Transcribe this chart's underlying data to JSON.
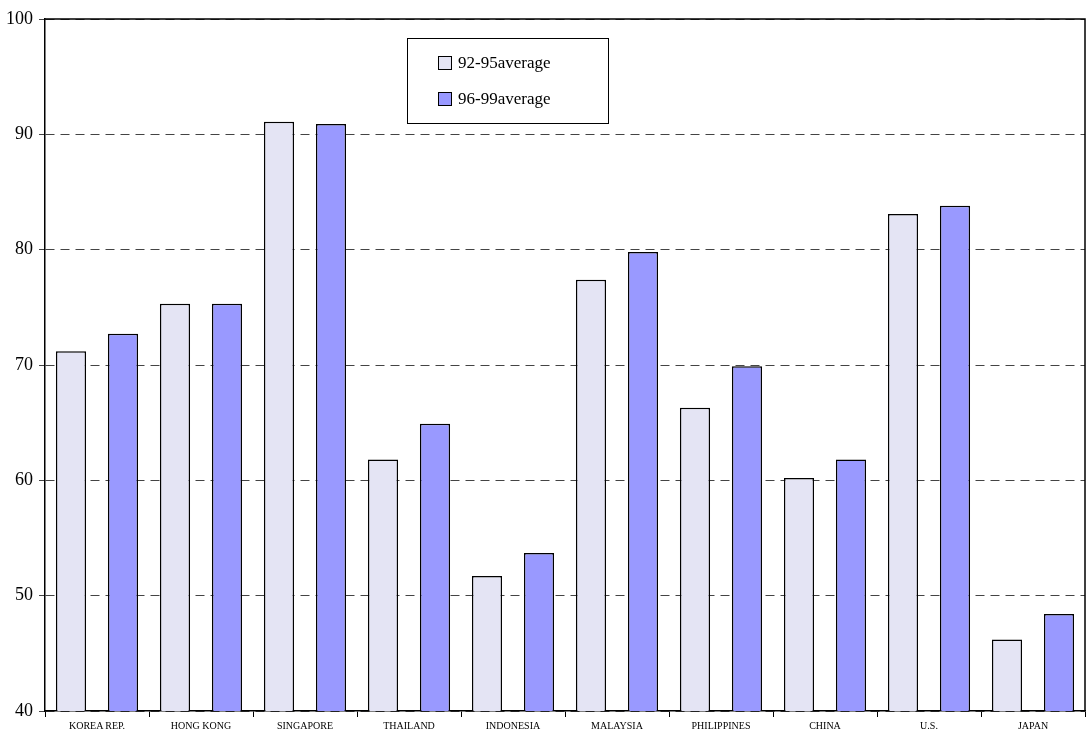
{
  "chart_data": {
    "type": "bar",
    "categories": [
      "KOREA REP.",
      "HONG KONG",
      "SINGAPORE",
      "THAILAND",
      "INDONESIA",
      "MALAYSIA",
      "PHILIPPINES",
      "CHINA",
      "U.S.",
      "JAPAN"
    ],
    "series": [
      {
        "name": "92-95average",
        "color": "#e4e4f4",
        "values": [
          71.2,
          75.3,
          91.1,
          61.8,
          51.7,
          77.4,
          66.3,
          60.2,
          83.1,
          46.2
        ]
      },
      {
        "name": "96-99average",
        "color": "#9999ff",
        "values": [
          72.7,
          75.3,
          90.9,
          64.9,
          53.7,
          79.8,
          69.9,
          61.8,
          83.8,
          48.4
        ]
      }
    ],
    "ylim": [
      40,
      100
    ],
    "yticks": [
      40,
      50,
      60,
      70,
      80,
      90,
      100
    ],
    "grid": "y",
    "legend": "top"
  }
}
